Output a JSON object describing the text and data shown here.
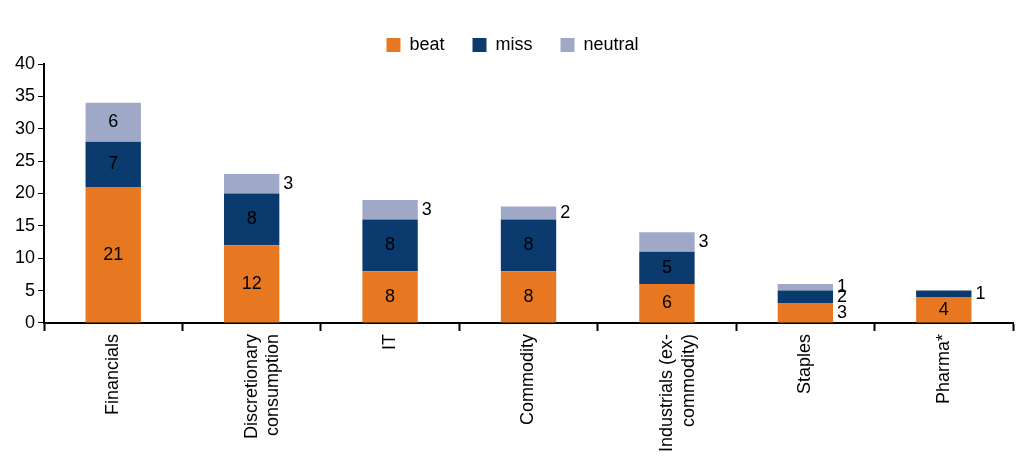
{
  "chart_data": {
    "type": "bar",
    "stacked": true,
    "categories": [
      "Financials",
      "Discretionary consumption",
      "IT",
      "Commodity",
      "Industrials (ex-commodity)",
      "Staples",
      "Pharma*"
    ],
    "series": [
      {
        "name": "beat",
        "color": "#e87722",
        "values": [
          21,
          12,
          8,
          8,
          6,
          3,
          4
        ]
      },
      {
        "name": "miss",
        "color": "#0b3a6e",
        "values": [
          7,
          8,
          8,
          8,
          5,
          2,
          1
        ]
      },
      {
        "name": "neutral",
        "color": "#a0a8c8",
        "values": [
          6,
          3,
          3,
          2,
          3,
          1,
          null
        ]
      }
    ],
    "ylim": [
      0,
      40
    ],
    "yticks": [
      0,
      5,
      10,
      15,
      20,
      25,
      30,
      35,
      40
    ],
    "grid": false,
    "legend": "top",
    "data_labels": true
  }
}
